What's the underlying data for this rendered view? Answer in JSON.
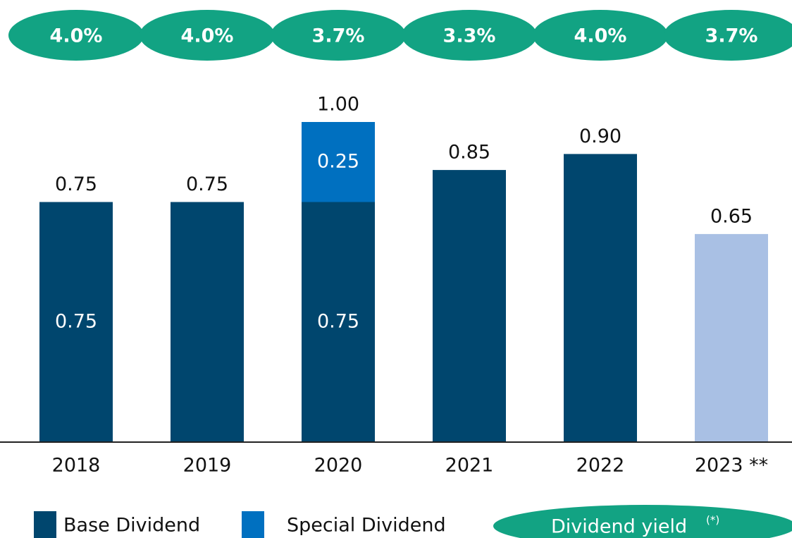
{
  "chart_data": {
    "type": "bar",
    "stacked": true,
    "categories": [
      "2018",
      "2019",
      "2020",
      "2021",
      "2022",
      "2023 **"
    ],
    "series": [
      {
        "name": "Base Dividend",
        "color": "#00466e",
        "colors": [
          "#00466e",
          "#00466e",
          "#00466e",
          "#00466e",
          "#00466e",
          "#a9c0e4"
        ],
        "values": [
          0.75,
          0.75,
          0.75,
          0.85,
          0.9,
          0.65
        ],
        "value_labels": [
          "0.75",
          null,
          "0.75",
          null,
          null,
          null
        ]
      },
      {
        "name": "Special Dividend",
        "color": "#0070c0",
        "values": [
          null,
          null,
          0.25,
          null,
          null,
          null
        ],
        "value_labels": [
          null,
          null,
          "0.25",
          null,
          null,
          null
        ]
      }
    ],
    "totals": [
      0.75,
      0.75,
      1.0,
      0.85,
      0.9,
      0.65
    ],
    "total_labels": [
      "0.75",
      "0.75",
      "1.00",
      "0.85",
      "0.90",
      "0.65"
    ],
    "yields": [
      4.0,
      4.0,
      3.7,
      3.3,
      4.0,
      3.7
    ],
    "yield_labels": [
      "4.0%",
      "4.0%",
      "3.7%",
      "3.3%",
      "4.0%",
      "3.7%"
    ],
    "yield_legend": "Dividend yield",
    "yield_legend_note": "(*)",
    "yield_color": "#12a383",
    "ylim": [
      0,
      1
    ]
  }
}
